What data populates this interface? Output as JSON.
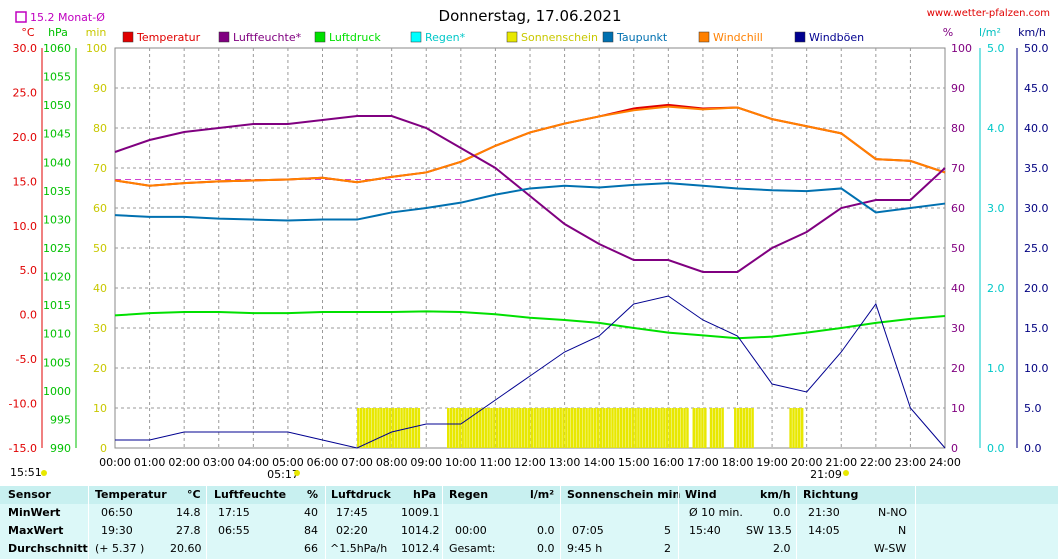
{
  "header": {
    "title": "Donnerstag, 17.06.2021",
    "site": "www.wetter-pfalzen.com",
    "monthly_avg": "15.2 Monat-Ø",
    "unit_c": "°C",
    "unit_hpa": "hPa",
    "unit_min": "min",
    "unit_pct": "%",
    "unit_lm2": "l/m²",
    "unit_kmh": "km/h",
    "time": "15:51",
    "sunrise": "05:17",
    "sunset": "21:09"
  },
  "legend": [
    {
      "label": "Temperatur",
      "color": "#e00000"
    },
    {
      "label": "Luftfeuchte*",
      "color": "#800080"
    },
    {
      "label": "Luftdruck",
      "color": "#00e000"
    },
    {
      "label": "Regen*",
      "color": "#00ffff"
    },
    {
      "label": "Sonnenschein",
      "color": "#e8e800"
    },
    {
      "label": "Taupunkt",
      "color": "#0070b0"
    },
    {
      "label": "Windchill",
      "color": "#ff8000"
    },
    {
      "label": "Windböen",
      "color": "#000090"
    }
  ],
  "chart_data": {
    "type": "line",
    "x_labels": [
      "00:00",
      "01:00",
      "02:00",
      "03:00",
      "04:00",
      "05:00",
      "06:00",
      "07:00",
      "08:00",
      "09:00",
      "10:00",
      "11:00",
      "12:00",
      "13:00",
      "14:00",
      "15:00",
      "16:00",
      "17:00",
      "18:00",
      "19:00",
      "20:00",
      "21:00",
      "22:00",
      "23:00",
      "24:00"
    ],
    "axes": {
      "temp_c": {
        "ticks": [
          "30.0",
          "25.0",
          "20.0",
          "15.0",
          "10.0",
          "5.0",
          "0.0",
          "-5.0",
          "-10.0",
          "-15.0"
        ],
        "range": [
          -15,
          30
        ]
      },
      "pressure_hpa": {
        "ticks": [
          "1060",
          "1055",
          "1050",
          "1045",
          "1040",
          "1035",
          "1030",
          "1025",
          "1020",
          "1015",
          "1010",
          "1005",
          "1000",
          "995",
          "990"
        ],
        "range": [
          990,
          1060
        ]
      },
      "sun_min": {
        "ticks": [
          "100",
          "90",
          "80",
          "70",
          "60",
          "50",
          "40",
          "30",
          "20",
          "10",
          "0"
        ],
        "range": [
          0,
          100
        ]
      },
      "humidity_pct": {
        "ticks": [
          "100",
          "90",
          "80",
          "70",
          "60",
          "50",
          "40",
          "30",
          "20",
          "10",
          "0"
        ],
        "range": [
          0,
          100
        ]
      },
      "rain_lm2": {
        "ticks": [
          "5.0",
          "4.0",
          "3.0",
          "2.0",
          "1.0",
          "0.0"
        ],
        "range": [
          0,
          5
        ]
      },
      "wind_kmh": {
        "ticks": [
          "50.0",
          "45.0",
          "40.0",
          "35.0",
          "30.0",
          "25.0",
          "20.0",
          "15.0",
          "10.0",
          "5.0",
          "0.0"
        ],
        "range": [
          0,
          50
        ]
      }
    },
    "monthly_avg_temp": 15.2,
    "hours": [
      0,
      1,
      2,
      3,
      4,
      5,
      6,
      7,
      8,
      9,
      10,
      11,
      12,
      13,
      14,
      15,
      16,
      17,
      18,
      19,
      20,
      21,
      22,
      23,
      24
    ],
    "series": [
      {
        "name": "Temperatur",
        "axis": "temp_c",
        "values": [
          15.1,
          14.5,
          14.8,
          15.0,
          15.1,
          15.2,
          15.4,
          14.9,
          15.5,
          16.0,
          17.2,
          19.0,
          20.5,
          21.5,
          22.3,
          23.2,
          23.6,
          23.2,
          23.3,
          22.0,
          21.2,
          20.4,
          17.5,
          17.3,
          16.0
        ]
      },
      {
        "name": "Windchill",
        "axis": "temp_c",
        "values": [
          15.1,
          14.5,
          14.8,
          15.0,
          15.1,
          15.2,
          15.4,
          14.9,
          15.5,
          16.0,
          17.2,
          19.0,
          20.5,
          21.5,
          22.3,
          23.0,
          23.4,
          23.1,
          23.3,
          22.0,
          21.2,
          20.4,
          17.5,
          17.3,
          16.0
        ]
      },
      {
        "name": "Luftfeuchte*",
        "axis": "humidity_pct",
        "values": [
          74,
          77,
          79,
          80,
          81,
          81,
          82,
          83,
          83,
          80,
          75,
          70,
          63,
          56,
          51,
          47,
          47,
          44,
          44,
          50,
          54,
          60,
          62,
          62,
          70
        ]
      },
      {
        "name": "Taupunkt",
        "axis": "temp_c",
        "values": [
          11.2,
          11.0,
          11.0,
          10.8,
          10.7,
          10.6,
          10.7,
          10.7,
          11.5,
          12.0,
          12.6,
          13.5,
          14.2,
          14.5,
          14.3,
          14.6,
          14.8,
          14.5,
          14.2,
          14.0,
          13.9,
          14.2,
          11.5,
          12.0,
          12.5
        ]
      },
      {
        "name": "Luftdruck",
        "axis": "pressure_hpa",
        "values": [
          1013.2,
          1013.6,
          1013.8,
          1013.8,
          1013.6,
          1013.6,
          1013.8,
          1013.8,
          1013.8,
          1013.9,
          1013.8,
          1013.4,
          1012.8,
          1012.4,
          1011.9,
          1011.0,
          1010.2,
          1009.7,
          1009.2,
          1009.5,
          1010.2,
          1011.0,
          1011.9,
          1012.6,
          1013.1
        ]
      },
      {
        "name": "Windböen",
        "axis": "wind_kmh",
        "values": [
          1,
          1,
          2,
          2,
          2,
          2,
          1,
          0,
          2,
          3,
          3,
          6,
          9,
          12,
          14,
          18,
          19,
          16,
          14,
          8,
          7,
          12,
          18,
          5,
          0
        ]
      }
    ],
    "sunshine_ranges": [
      [
        7.0,
        8.8
      ],
      [
        9.6,
        16.6
      ],
      [
        16.7,
        17.1
      ],
      [
        17.2,
        17.6
      ],
      [
        17.9,
        18.4
      ],
      [
        19.5,
        19.9
      ]
    ]
  },
  "table": {
    "headers": [
      "Sensor",
      "Temperatur",
      "°C",
      "Luftfeuchte",
      "%",
      "Luftdruck",
      "hPa",
      "Regen",
      "l/m²",
      "Sonnenschein min",
      "Wind",
      "km/h",
      "Richtung"
    ],
    "rows": [
      {
        "label": "MinWert",
        "t_time": "06:50",
        "t_val": "14.8",
        "h_time": "17:15",
        "h_val": "40",
        "p_time": "17:45",
        "p_val": "1009.1",
        "r_time": "",
        "r_val": "",
        "s_time": "",
        "s_val": "",
        "w_time": "Ø 10 min.",
        "w_val": "0.0",
        "d_time": "21:30",
        "d_val": "N-NO"
      },
      {
        "label": "MaxWert",
        "t_time": "19:30",
        "t_val": "27.8",
        "h_time": "06:55",
        "h_val": "84",
        "p_time": "02:20",
        "p_val": "1014.2",
        "r_time": "00:00",
        "r_val": "0.0",
        "s_time": "07:05",
        "s_val": "5",
        "w_time": "15:40",
        "w_val": "SW 13.5",
        "d_time": "14:05",
        "d_val": "N"
      },
      {
        "label": "Durchschnitt",
        "t_time": "(+ 5.37 )",
        "t_val": "20.60",
        "h_time": "",
        "h_val": "66",
        "p_time": "^1.5hPa/h",
        "p_val": "1012.4",
        "r_time": "Gesamt:",
        "r_val": "0.0",
        "s_time": "9:45 h",
        "s_val": "2",
        "w_time": "",
        "w_val": "2.0",
        "d_time": "",
        "d_val": "W-SW"
      }
    ]
  }
}
